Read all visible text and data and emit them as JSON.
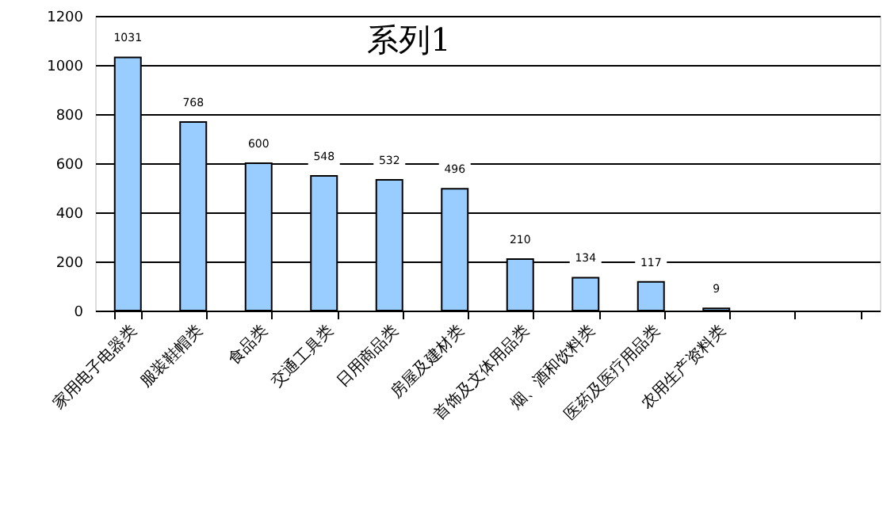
{
  "chart_data": {
    "type": "bar",
    "title": "系列1",
    "categories": [
      "家用电子电器类",
      "服装鞋帽类",
      "食品类",
      "交通工具类",
      "日用商品类",
      "房屋及建材类",
      "首饰及文体用品类",
      "烟、酒和饮料类",
      "医药及医疗用品类",
      "农用生产资料类",
      null,
      null
    ],
    "values": [
      1031,
      768,
      600,
      548,
      532,
      496,
      210,
      134,
      117,
      9,
      null,
      null
    ],
    "color": "#99ccff",
    "ylim": [
      0,
      1200
    ],
    "yticks": [
      0,
      200,
      400,
      600,
      800,
      1000,
      1200
    ],
    "grid": "y",
    "data_labels": true
  }
}
